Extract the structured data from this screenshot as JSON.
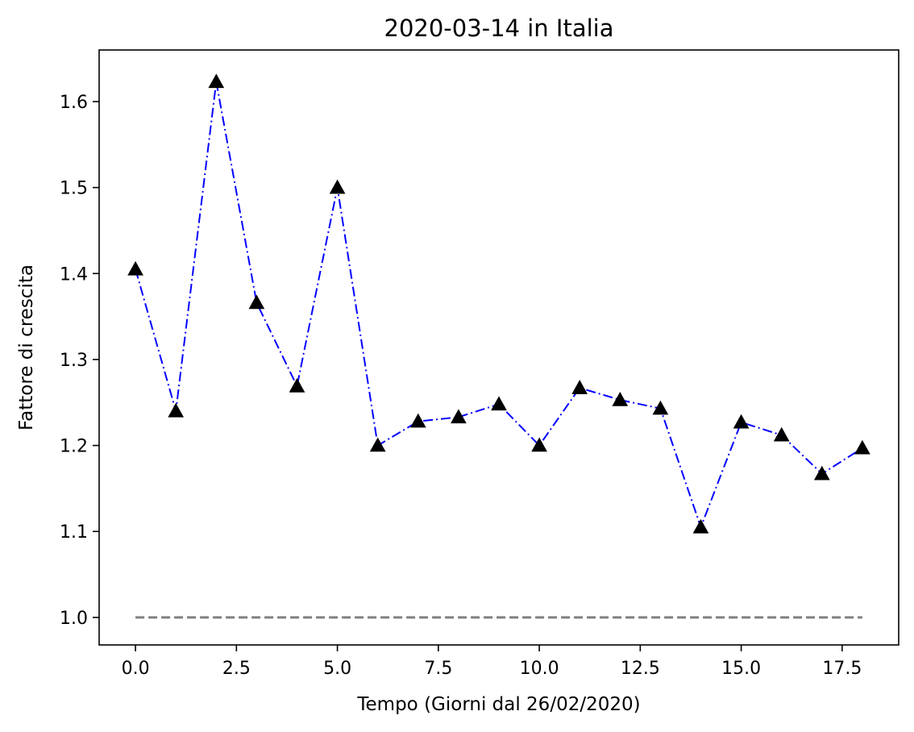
{
  "chart_data": {
    "type": "line",
    "title": "2020-03-14 in Italia",
    "xlabel": "Tempo (Giorni dal 26/02/2020)",
    "ylabel": "Fattore di crescita",
    "xlim": [
      -0.9,
      18.9
    ],
    "ylim": [
      0.968,
      1.66
    ],
    "x_ticks": [
      0.0,
      2.5,
      5.0,
      7.5,
      10.0,
      12.5,
      15.0,
      17.5
    ],
    "x_tick_labels": [
      "0.0",
      "2.5",
      "5.0",
      "7.5",
      "10.0",
      "12.5",
      "15.0",
      "17.5"
    ],
    "y_ticks": [
      1.0,
      1.1,
      1.2,
      1.3,
      1.4,
      1.5,
      1.6
    ],
    "y_tick_labels": [
      "1.0",
      "1.1",
      "1.2",
      "1.3",
      "1.4",
      "1.5",
      "1.6"
    ],
    "grid": false,
    "series": [
      {
        "style": "dash-dot line with triangle markers",
        "line_color": "#0000ff",
        "marker_color": "#000000",
        "x": [
          0,
          1,
          2,
          3,
          4,
          5,
          6,
          7,
          8,
          9,
          10,
          11,
          12,
          13,
          14,
          15,
          16,
          17,
          18
        ],
        "y": [
          1.405,
          1.24,
          1.623,
          1.366,
          1.269,
          1.5,
          1.2,
          1.228,
          1.233,
          1.248,
          1.2,
          1.267,
          1.253,
          1.243,
          1.105,
          1.227,
          1.212,
          1.167,
          1.197
        ]
      },
      {
        "style": "dashed reference line",
        "line_color": "#808080",
        "x": [
          0,
          18
        ],
        "y": [
          1.0,
          1.0
        ]
      }
    ]
  }
}
